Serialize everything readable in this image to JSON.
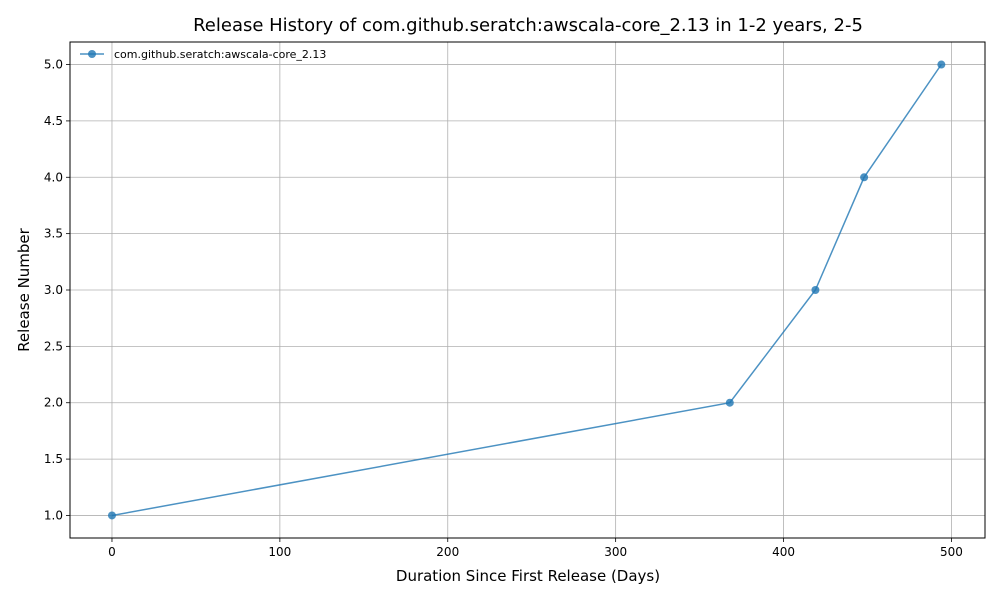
{
  "chart_data": {
    "type": "line",
    "title": "Release History of com.github.seratch:awscala-core_2.13 in 1-2 years, 2-5",
    "xlabel": "Duration Since First Release (Days)",
    "ylabel": "Release Number",
    "xlim": [
      -25,
      520
    ],
    "ylim": [
      0.8,
      5.2
    ],
    "xticks": [
      0,
      100,
      200,
      300,
      400,
      500
    ],
    "yticks": [
      1.0,
      1.5,
      2.0,
      2.5,
      3.0,
      3.5,
      4.0,
      4.5,
      5.0
    ],
    "xtick_labels": [
      "0",
      "100",
      "200",
      "300",
      "400",
      "500"
    ],
    "ytick_labels": [
      "1.0",
      "1.5",
      "2.0",
      "2.5",
      "3.0",
      "3.5",
      "4.0",
      "4.5",
      "5.0"
    ],
    "grid": true,
    "legend_position": "top-left",
    "series": [
      {
        "name": "com.github.seratch:awscala-core_2.13",
        "color": "#1f77b4",
        "marker": "circle",
        "x": [
          0,
          368,
          419,
          448,
          494
        ],
        "y": [
          1,
          2,
          3,
          4,
          5
        ]
      }
    ]
  }
}
